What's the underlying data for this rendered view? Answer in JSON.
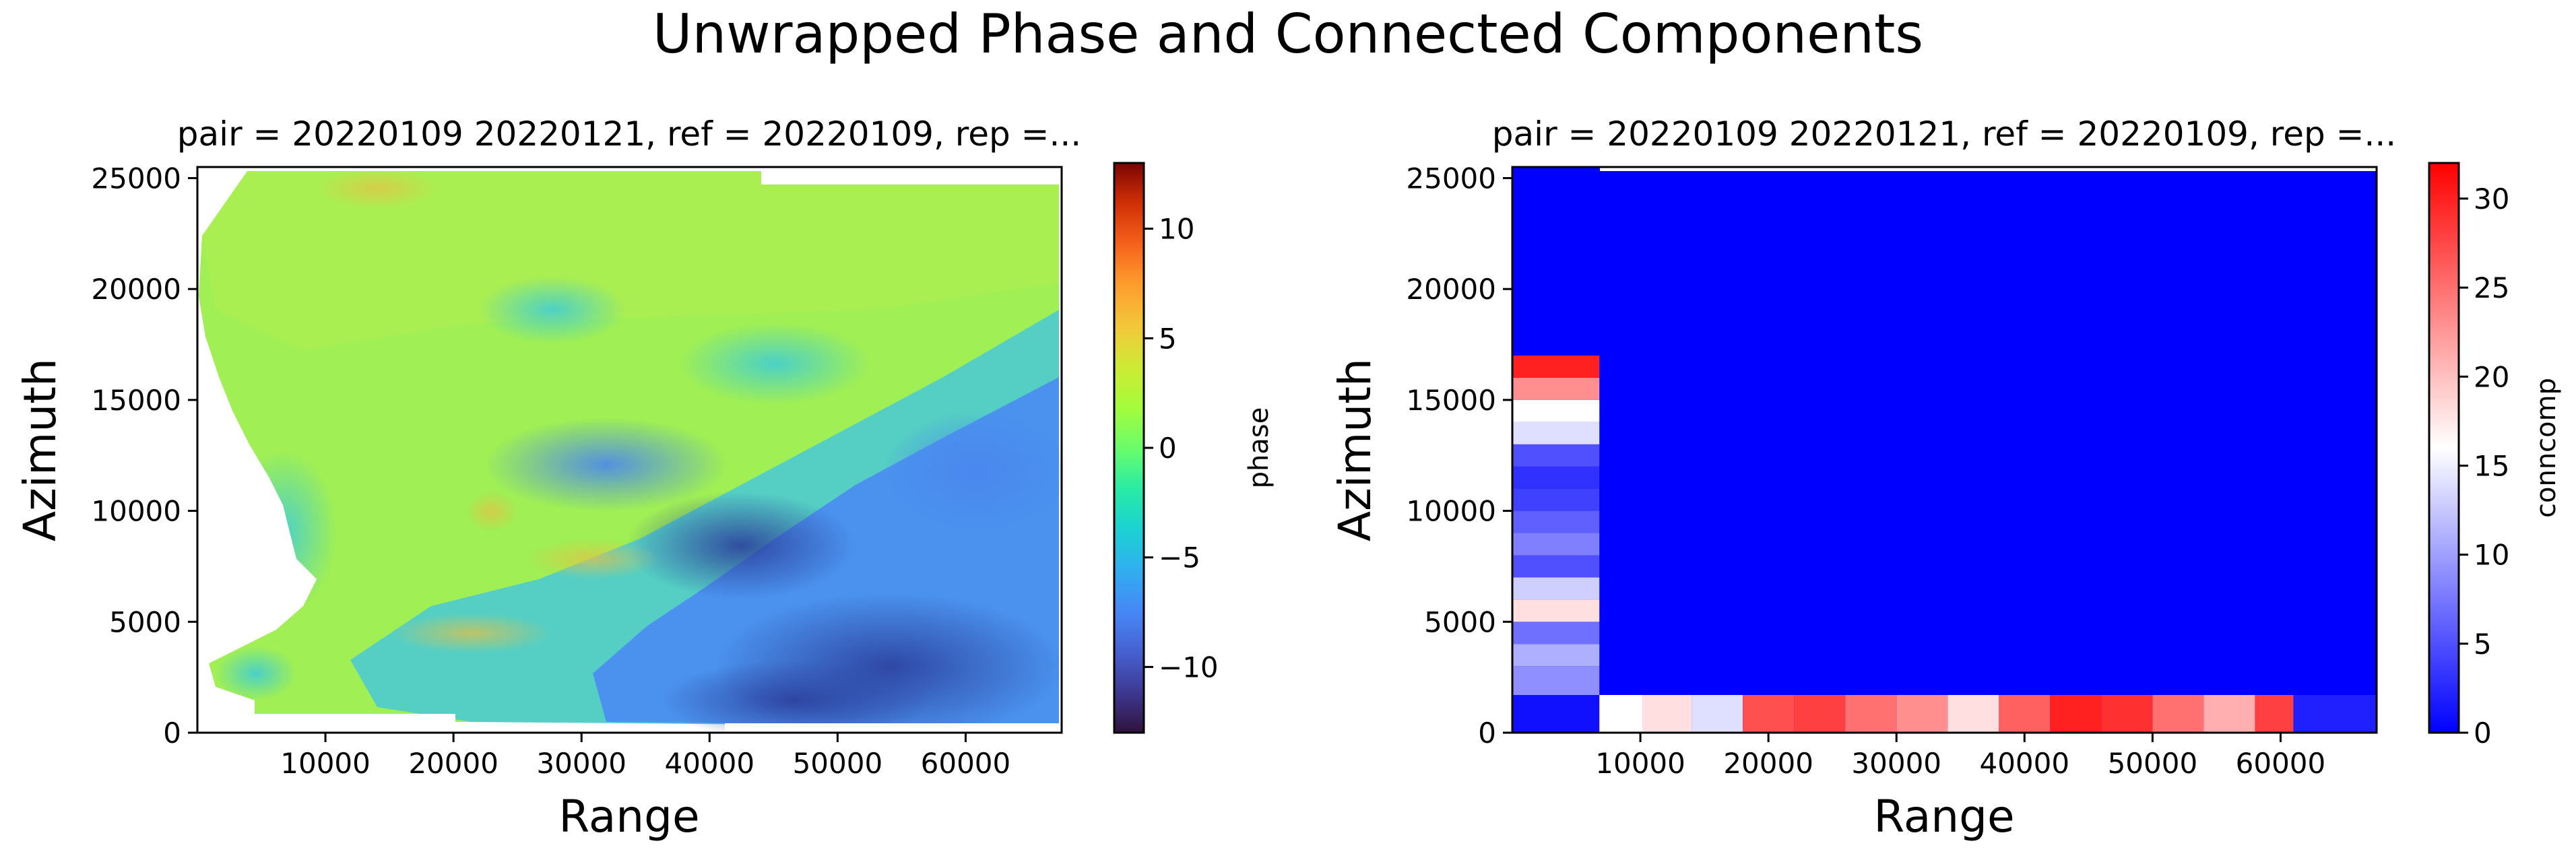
{
  "figure": {
    "suptitle": "Unwrapped Phase and Connected Components"
  },
  "chart_data": [
    {
      "type": "heatmap",
      "title": "pair = 20220109 20220121, ref = 20220109, rep =...",
      "xlabel": "Range",
      "ylabel": "Azimuth",
      "xlim": [
        0,
        67500
      ],
      "ylim": [
        0,
        25500
      ],
      "xticks": [
        10000,
        20000,
        30000,
        40000,
        50000,
        60000
      ],
      "xtick_labels": [
        "10000",
        "20000",
        "30000",
        "40000",
        "50000",
        "60000"
      ],
      "yticks": [
        0,
        5000,
        10000,
        15000,
        20000,
        25000
      ],
      "ytick_labels": [
        "0",
        "5000",
        "10000",
        "15000",
        "20000",
        "25000"
      ],
      "colorbar": {
        "label": "phase",
        "colormap": "turbo",
        "range": [
          -13,
          13
        ],
        "ticks": [
          -10,
          -5,
          0,
          5,
          10
        ],
        "tick_labels": [
          "−10",
          "−5",
          "0",
          "5",
          "10"
        ]
      },
      "grid": false,
      "description_of_field": "Unwrapped interferometric phase; mostly near -2 to 0 (green) over the north and west, decreasing to about -12 (dark blue) in the south-east; no-data (white) along the western coastline and the top-left and bottom-left corners."
    },
    {
      "type": "heatmap",
      "title": "pair = 20220109 20220121, ref = 20220109, rep =...",
      "xlabel": "Range",
      "ylabel": "Azimuth",
      "xlim": [
        0,
        67500
      ],
      "ylim": [
        0,
        25500
      ],
      "xticks": [
        10000,
        20000,
        30000,
        40000,
        50000,
        60000
      ],
      "xtick_labels": [
        "10000",
        "20000",
        "30000",
        "40000",
        "50000",
        "60000"
      ],
      "yticks": [
        0,
        5000,
        10000,
        15000,
        20000,
        25000
      ],
      "ytick_labels": [
        "0",
        "5000",
        "10000",
        "15000",
        "20000",
        "25000"
      ],
      "colorbar": {
        "label": "conncomp",
        "colormap": "bwr",
        "range": [
          0,
          32
        ],
        "ticks": [
          0,
          5,
          10,
          15,
          20,
          25,
          30
        ],
        "tick_labels": [
          "0",
          "5",
          "10",
          "15",
          "20",
          "25",
          "30"
        ]
      },
      "grid": false,
      "background_component": 0,
      "left_column_components": {
        "x_range": [
          0,
          6800
        ],
        "y_ranges": [
          [
            0,
            1700
          ],
          [
            1700,
            3000
          ],
          [
            3000,
            4000
          ],
          [
            4000,
            5000
          ],
          [
            5000,
            6000
          ],
          [
            6000,
            7000
          ],
          [
            7000,
            8000
          ],
          [
            8000,
            9000
          ],
          [
            9000,
            10000
          ],
          [
            10000,
            11000
          ],
          [
            11000,
            12000
          ],
          [
            12000,
            13000
          ],
          [
            13000,
            14000
          ],
          [
            14000,
            15000
          ],
          [
            15000,
            16000
          ],
          [
            16000,
            17000
          ]
        ],
        "values": [
          1,
          9,
          11,
          7,
          18,
          13,
          5,
          8,
          6,
          4,
          3,
          5,
          14,
          16,
          23,
          30
        ]
      },
      "bottom_row_components": {
        "y_range": [
          0,
          1700
        ],
        "x_ranges": [
          [
            6800,
            10200
          ],
          [
            10200,
            14000
          ],
          [
            14000,
            18000
          ],
          [
            18000,
            22000
          ],
          [
            22000,
            26000
          ],
          [
            26000,
            30000
          ],
          [
            30000,
            34000
          ],
          [
            34000,
            38000
          ],
          [
            38000,
            42000
          ],
          [
            42000,
            46000
          ],
          [
            46000,
            50000
          ],
          [
            50000,
            54000
          ],
          [
            54000,
            58000
          ],
          [
            58000,
            61000
          ],
          [
            61000,
            67500
          ]
        ],
        "values": [
          16,
          18,
          14,
          27,
          28,
          25,
          23,
          18,
          26,
          30,
          29,
          25,
          21,
          28,
          2
        ]
      }
    }
  ]
}
